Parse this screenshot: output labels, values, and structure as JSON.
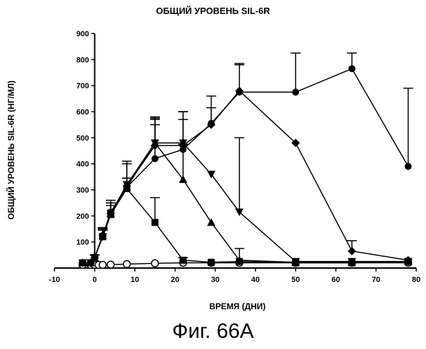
{
  "chart_data": {
    "type": "line",
    "title": "ОБЩИЙ УРОВЕНЬ SIL-6R",
    "xlabel": "ВРЕМЯ (ДНИ)",
    "ylabel": "ОБЩИЙ УРОВЕНЬ SIL-6R (НГ/МЛ)",
    "xlim": [
      -10,
      80
    ],
    "ylim": [
      0,
      900
    ],
    "x_ticks": [
      -10,
      0,
      10,
      20,
      30,
      40,
      50,
      60,
      70,
      80
    ],
    "y_ticks": [
      0,
      100,
      200,
      300,
      400,
      500,
      600,
      700,
      800,
      900
    ],
    "grid": false,
    "series": [
      {
        "marker": "open-circle",
        "x": [
          -3,
          -1,
          0,
          1,
          2,
          4,
          8,
          15,
          22,
          29,
          36,
          50,
          64,
          78
        ],
        "y": [
          12,
          12,
          12,
          12,
          12,
          13,
          15,
          18,
          20,
          20,
          20,
          20,
          20,
          20
        ]
      },
      {
        "marker": "square",
        "x": [
          -3,
          -1,
          0,
          2,
          4,
          8,
          15,
          22,
          29,
          36,
          50,
          64,
          78
        ],
        "y": [
          20,
          20,
          40,
          120,
          205,
          305,
          175,
          30,
          22,
          25,
          20,
          20,
          25
        ],
        "err": [
          0,
          0,
          10,
          25,
          35,
          0,
          95,
          10,
          0,
          0,
          0,
          0,
          0
        ]
      },
      {
        "marker": "triangle-up",
        "x": [
          -3,
          -1,
          0,
          2,
          4,
          8,
          15,
          22,
          29,
          36,
          50,
          64,
          78
        ],
        "y": [
          20,
          20,
          40,
          125,
          210,
          310,
          480,
          340,
          175,
          30,
          22,
          22,
          25
        ],
        "err": [
          0,
          0,
          10,
          25,
          40,
          90,
          100,
          135,
          0,
          45,
          0,
          0,
          0
        ]
      },
      {
        "marker": "triangle-down",
        "x": [
          -3,
          -1,
          0,
          2,
          4,
          8,
          15,
          22,
          29,
          36,
          50,
          64,
          78
        ],
        "y": [
          20,
          20,
          40,
          120,
          210,
          320,
          480,
          480,
          360,
          215,
          25,
          25,
          25
        ],
        "err": [
          0,
          0,
          10,
          30,
          40,
          25,
          70,
          90,
          0,
          285,
          0,
          0,
          0
        ]
      },
      {
        "marker": "diamond",
        "x": [
          -3,
          -1,
          0,
          2,
          4,
          8,
          15,
          22,
          29,
          36,
          50,
          64,
          78
        ],
        "y": [
          20,
          20,
          40,
          125,
          210,
          315,
          470,
          470,
          550,
          680,
          480,
          65,
          30
        ],
        "err": [
          0,
          0,
          10,
          30,
          40,
          30,
          105,
          130,
          110,
          100,
          0,
          40,
          0
        ]
      },
      {
        "marker": "filled-circle",
        "x": [
          -3,
          -1,
          0,
          2,
          4,
          8,
          15,
          22,
          29,
          36,
          50,
          64,
          78
        ],
        "y": [
          20,
          20,
          40,
          125,
          215,
          310,
          420,
          455,
          555,
          675,
          675,
          765,
          390
        ],
        "err": [
          0,
          0,
          10,
          30,
          45,
          100,
          150,
          145,
          60,
          110,
          150,
          60,
          300
        ]
      }
    ]
  },
  "caption": "Фиг. 66А"
}
